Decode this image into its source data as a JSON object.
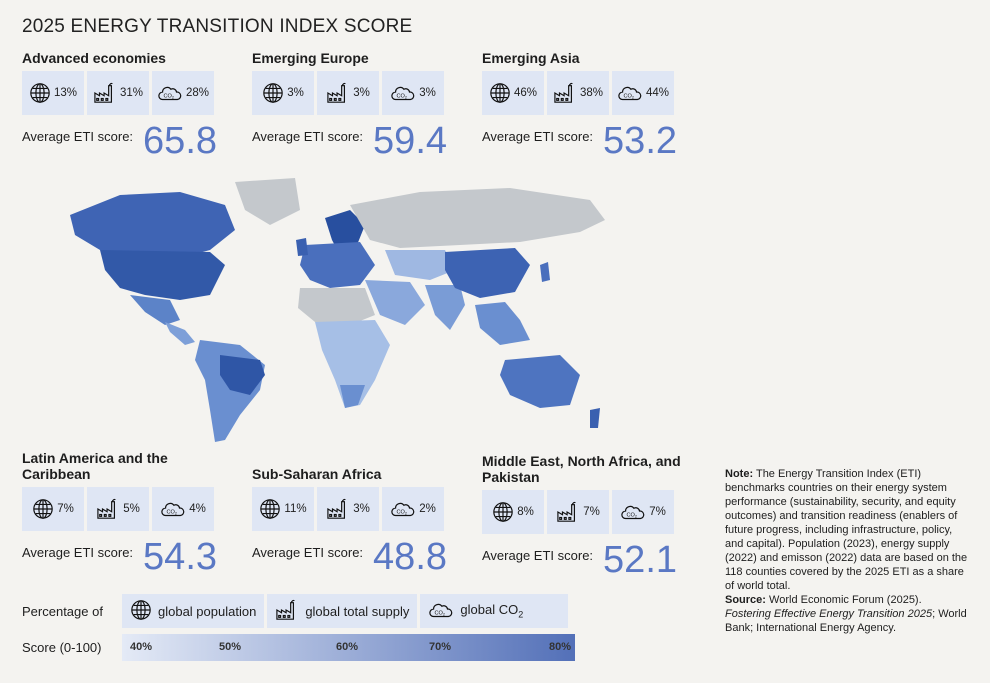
{
  "title": "2025 ENERGY TRANSITION INDEX SCORE",
  "avg_label": "Average ETI score:",
  "regions": [
    {
      "name": "Advanced economies",
      "pop": "13%",
      "supply": "31%",
      "co2": "28%",
      "score": "65.8"
    },
    {
      "name": "Emerging Europe",
      "pop": "3%",
      "supply": "3%",
      "co2": "3%",
      "score": "59.4"
    },
    {
      "name": "Emerging Asia",
      "pop": "46%",
      "supply": "38%",
      "co2": "44%",
      "score": "53.2"
    },
    {
      "name": "Latin America and the Caribbean",
      "pop": "7%",
      "supply": "5%",
      "co2": "4%",
      "score": "54.3"
    },
    {
      "name": "Sub-Saharan Africa",
      "pop": "11%",
      "supply": "3%",
      "co2": "2%",
      "score": "48.8"
    },
    {
      "name": "Middle East, North Africa, and Pakistan",
      "pop": "8%",
      "supply": "7%",
      "co2": "7%",
      "score": "52.1"
    }
  ],
  "legend": {
    "percentage_of": "Percentage of",
    "population": "global population",
    "supply": "global total supply",
    "co2": "global CO",
    "co2_sub": "2",
    "score_label": "Score (0-100)",
    "ticks": [
      "40%",
      "50%",
      "60%",
      "70%",
      "80%"
    ]
  },
  "note": {
    "note_head": "Note:",
    "note_text": "The Energy Transition Index (ETI) benchmarks countries on their energy system performance (sustainability, security, and equity outcomes) and transition readiness (enablers of future progress, including infrastructure, policy, and capital). Population (2023), energy supply (2022) and emisson (2022) data are based on the 118 counties covered by the 2025 ETI as a share of world total.",
    "source_head": "Source:",
    "source_text": "World Economic Forum (2025).",
    "source_title": "Fostering Effective Energy Transition 2025",
    "source_rest": "; World Bank; International Energy Agency."
  },
  "colors": {
    "accent": "#5a78c4",
    "tile": "#dfe6f4",
    "map_no_data": "#c4c8cc",
    "map_dark": "#2f56a6",
    "map_light": "#b9cdec"
  },
  "icons": [
    "globe-icon",
    "factory-icon",
    "co2-cloud-icon"
  ]
}
